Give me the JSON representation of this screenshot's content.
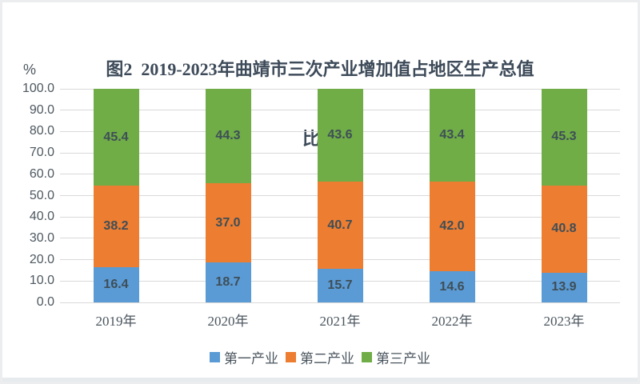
{
  "title": {
    "line1": "图2  2019-2023年曲靖市三次产业增加值占地区生产总值",
    "line2": "比重",
    "color": "#3d4a59"
  },
  "y_axis": {
    "unit": "%",
    "ticks": [
      "0.0",
      "10.0",
      "20.0",
      "30.0",
      "40.0",
      "50.0",
      "60.0",
      "70.0",
      "80.0",
      "90.0",
      "100.0"
    ],
    "min": 0,
    "max": 100
  },
  "chart_data": {
    "type": "bar",
    "stacked": true,
    "title": "图2 2019-2023年曲靖市三次产业增加值占地区生产总值比重",
    "xlabel": "",
    "ylabel": "%",
    "ylim": [
      0,
      100
    ],
    "grid": true,
    "gridline_color": "#d9d9d9",
    "legend_position": "bottom",
    "categories": [
      "2019年",
      "2020年",
      "2021年",
      "2022年",
      "2023年"
    ],
    "series": [
      {
        "name": "第一产业",
        "color": "#5b9bd5",
        "values": [
          16.4,
          18.7,
          15.7,
          14.6,
          13.9
        ]
      },
      {
        "name": "第二产业",
        "color": "#ed7d31",
        "values": [
          38.2,
          37.0,
          40.7,
          42.0,
          40.8
        ]
      },
      {
        "name": "第三产业",
        "color": "#70ad47",
        "values": [
          45.4,
          44.3,
          43.6,
          43.4,
          45.3
        ]
      }
    ],
    "label_color": "#3e4e57"
  }
}
